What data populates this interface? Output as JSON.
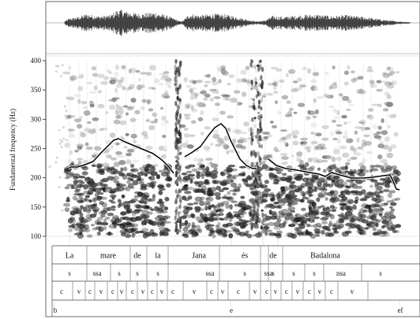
{
  "y_axis": {
    "label": "Fundamental frequency (Hz)",
    "ticks": [
      "400",
      "350",
      "300",
      "250",
      "200",
      "150",
      "100"
    ],
    "range": [
      100,
      400
    ]
  },
  "words_tier": [
    {
      "label": "La"
    },
    {
      "label": "mare"
    },
    {
      "label": "de"
    },
    {
      "label": "la"
    },
    {
      "label": "Jana"
    },
    {
      "label": "és"
    },
    {
      "label": "de"
    },
    {
      "label": "Badalona"
    }
  ],
  "syllable_tier": [
    "s",
    "ssa",
    "s",
    "s",
    "s",
    "ssa",
    "s",
    "ssa",
    "s",
    "s",
    "s",
    "nsa",
    "s"
  ],
  "segment_tier": [
    "c",
    "v",
    "c",
    "v",
    "c",
    "v",
    "c",
    "v",
    "c",
    "v",
    "c",
    "v",
    "c",
    "v",
    "c",
    "v",
    "c",
    "v",
    "c",
    "v",
    "c",
    "v",
    "c",
    "v"
  ],
  "break_tier": [
    {
      "label": "b"
    },
    {
      "label": "e"
    },
    {
      "label": "ef"
    }
  ],
  "colors": {
    "pitch_line": "#000000",
    "spectrogram": "#222222",
    "waveform": "#333333"
  }
}
